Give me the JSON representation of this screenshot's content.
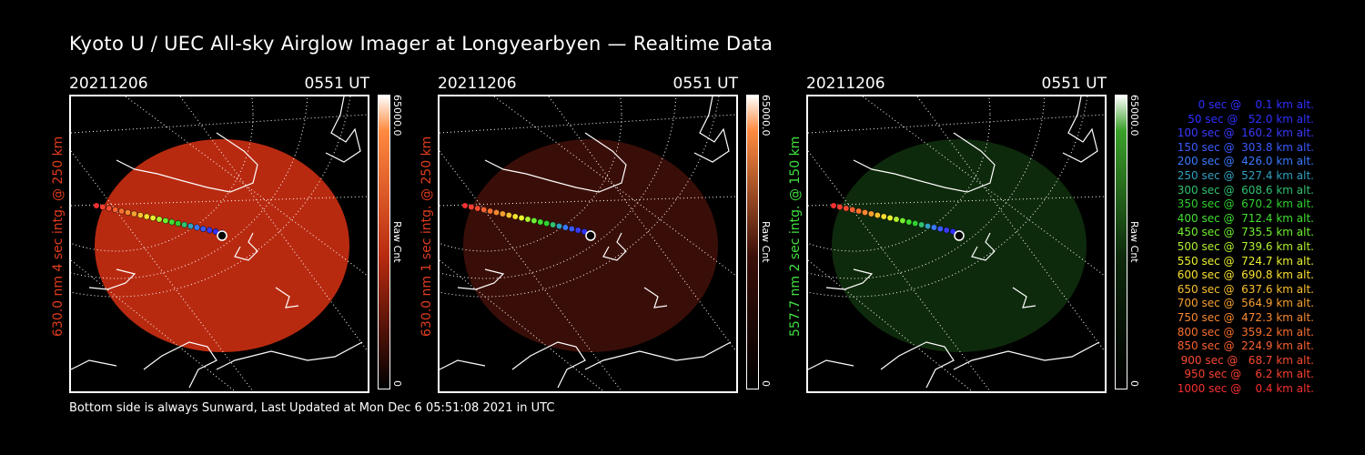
{
  "title": "Kyoto U / UEC All-sky Airglow Imager at Longyearbyen — Realtime Data",
  "panels": [
    {
      "date": "20211206",
      "time": "0551 UT",
      "ylabel": "630.0 nm 4 sec intg. @ 250 km",
      "label_color": "#e03c1e",
      "image_color": "#b82a10",
      "cbar_top": "#ff8a40",
      "cbar_max": "65000.0",
      "cbar_min": "0",
      "cbar_unit": "Raw Cnt"
    },
    {
      "date": "20211206",
      "time": "0551 UT",
      "ylabel": "630.0 nm 1 sec intg. @ 250 km",
      "label_color": "#e03c1e",
      "image_color": "#3a0e08",
      "cbar_top": "#ff8a40",
      "cbar_max": "65000.0",
      "cbar_min": "0",
      "cbar_unit": "Raw Cnt"
    },
    {
      "date": "20211206",
      "time": "0551 UT",
      "ylabel": "557.7 nm 2 sec intg. @ 150 km",
      "label_color": "#40e040",
      "image_color": "#0e2a0c",
      "cbar_top": "#3aa02a",
      "cbar_max": "65000.0",
      "cbar_min": "0",
      "cbar_unit": "Raw Cnt"
    }
  ],
  "footer": "Bottom side is always Sunward, Last Updated at Mon Dec  6 05:51:08 2021 in UTC",
  "legend": [
    {
      "text": "   0 sec @    0.1 km alt.",
      "color": "#3030ff"
    },
    {
      "text": "  50 sec @   52.0 km alt.",
      "color": "#3030ff"
    },
    {
      "text": " 100 sec @  160.2 km alt.",
      "color": "#3a3aff"
    },
    {
      "text": " 150 sec @  303.8 km alt.",
      "color": "#3a5aff"
    },
    {
      "text": " 200 sec @  426.0 km alt.",
      "color": "#3a7aff"
    },
    {
      "text": " 250 sec @  527.4 km alt.",
      "color": "#30a0c0"
    },
    {
      "text": " 300 sec @  608.6 km alt.",
      "color": "#30c070"
    },
    {
      "text": " 350 sec @  670.2 km alt.",
      "color": "#30d030"
    },
    {
      "text": " 400 sec @  712.4 km alt.",
      "color": "#40e030"
    },
    {
      "text": " 450 sec @  735.5 km alt.",
      "color": "#70f030"
    },
    {
      "text": " 500 sec @  739.6 km alt.",
      "color": "#b0f030"
    },
    {
      "text": " 550 sec @  724.7 km alt.",
      "color": "#e8f030"
    },
    {
      "text": " 600 sec @  690.8 km alt.",
      "color": "#f8e030"
    },
    {
      "text": " 650 sec @  637.6 km alt.",
      "color": "#f8c030"
    },
    {
      "text": " 700 sec @  564.9 km alt.",
      "color": "#f8a030"
    },
    {
      "text": " 750 sec @  472.3 km alt.",
      "color": "#f88830"
    },
    {
      "text": " 800 sec @  359.2 km alt.",
      "color": "#f87030"
    },
    {
      "text": " 850 sec @  224.9 km alt.",
      "color": "#f86030"
    },
    {
      "text": " 900 sec @   68.7 km alt.",
      "color": "#f84a30"
    },
    {
      "text": " 950 sec @    6.2 km alt.",
      "color": "#f84030"
    },
    {
      "text": "1000 sec @    0.4 km alt.",
      "color": "#f83030"
    }
  ]
}
